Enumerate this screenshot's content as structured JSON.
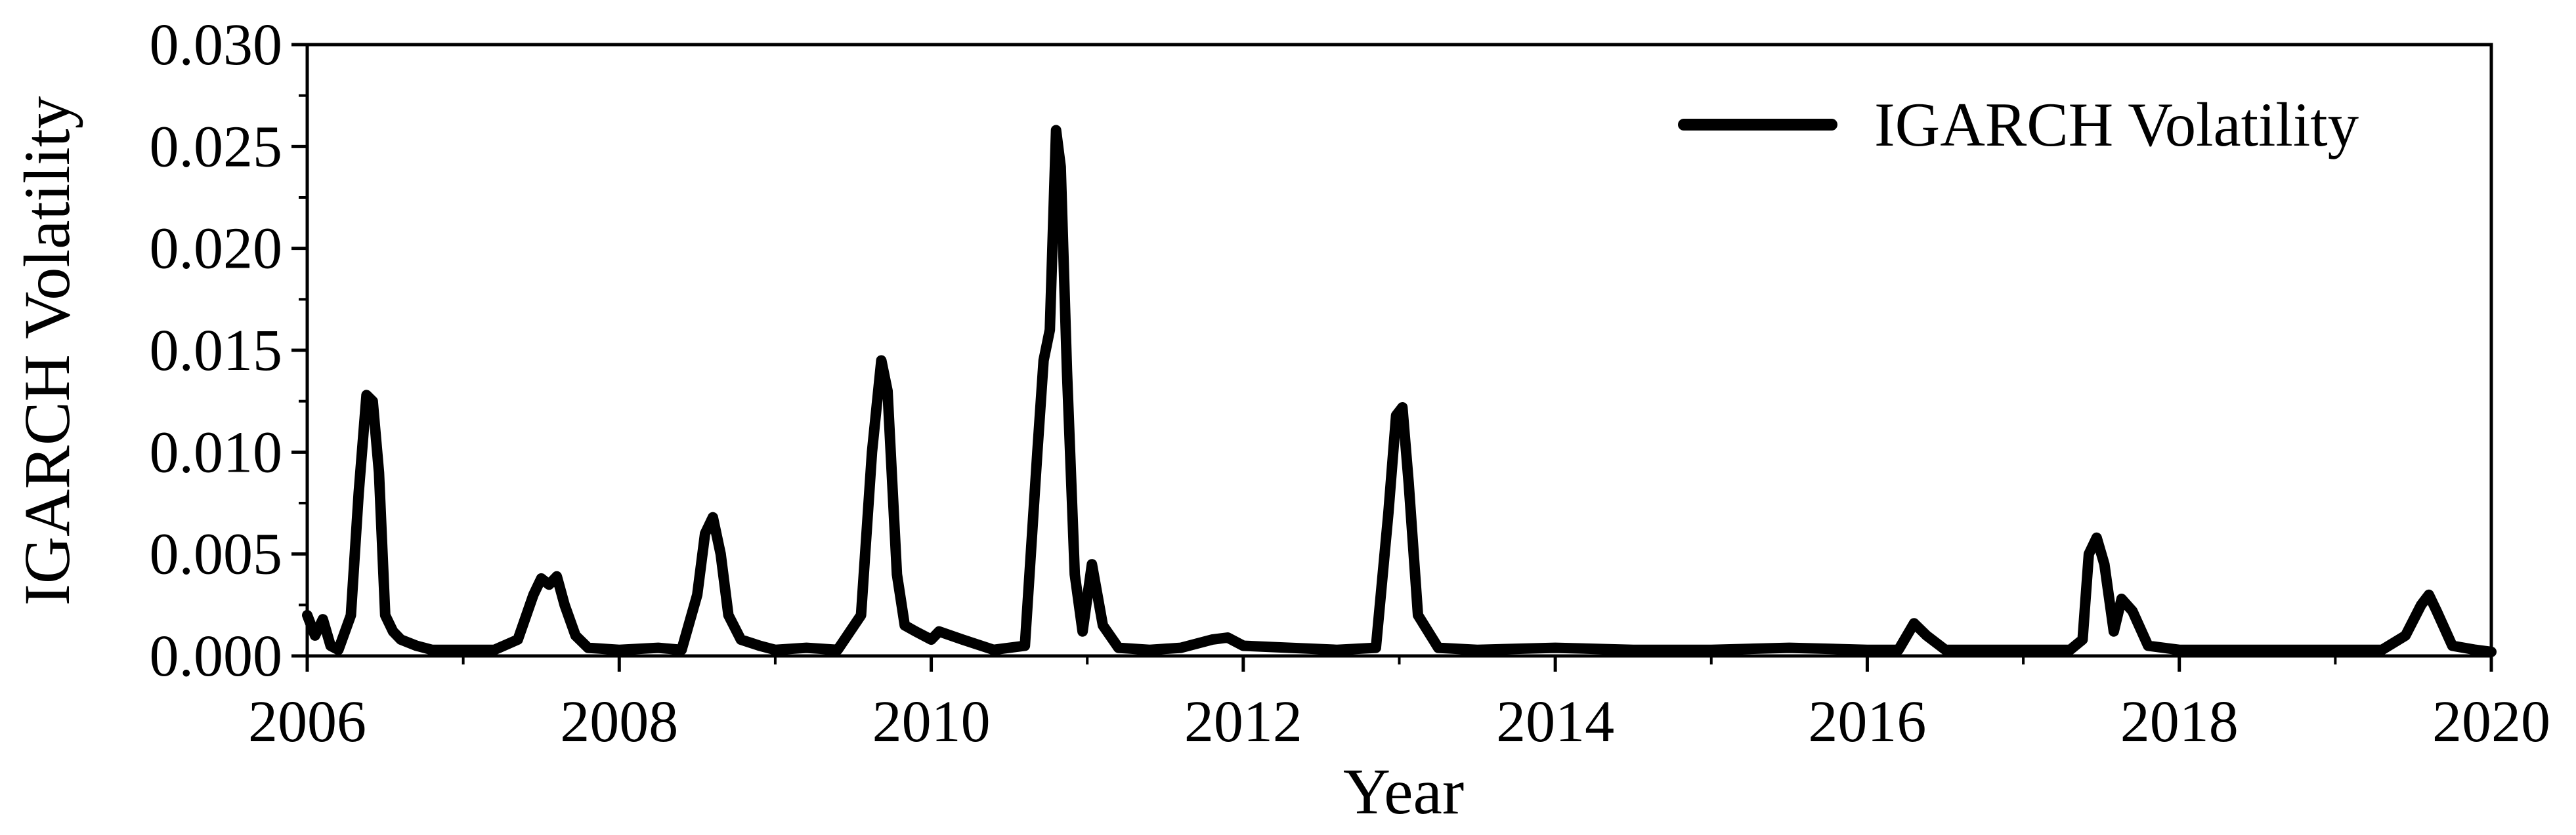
{
  "chart_data": {
    "type": "line",
    "xlabel": "Year",
    "ylabel": "IGARCH Volatility",
    "xlim": [
      2006,
      2020
    ],
    "ylim": [
      0,
      0.03
    ],
    "x_ticks": [
      "2006",
      "2008",
      "2010",
      "2012",
      "2014",
      "2016",
      "2018",
      "2020"
    ],
    "y_ticks": [
      "0.000",
      "0.005",
      "0.010",
      "0.015",
      "0.020",
      "0.025",
      "0.030"
    ],
    "legend_position": "top-right",
    "grid": false,
    "series": [
      {
        "name": "IGARCH Volatility",
        "color": "#000000",
        "x": [
          2006.0,
          2006.05,
          2006.1,
          2006.15,
          2006.2,
          2006.28,
          2006.33,
          2006.38,
          2006.42,
          2006.46,
          2006.5,
          2006.55,
          2006.6,
          2006.7,
          2006.8,
          2007.0,
          2007.2,
          2007.35,
          2007.45,
          2007.5,
          2007.55,
          2007.6,
          2007.65,
          2007.72,
          2007.8,
          2008.0,
          2008.25,
          2008.4,
          2008.5,
          2008.55,
          2008.6,
          2008.65,
          2008.7,
          2008.78,
          2008.9,
          2009.0,
          2009.2,
          2009.4,
          2009.55,
          2009.62,
          2009.68,
          2009.72,
          2009.78,
          2009.83,
          2009.9,
          2010.0,
          2010.05,
          2010.2,
          2010.4,
          2010.6,
          2010.68,
          2010.72,
          2010.76,
          2010.8,
          2010.83,
          2010.87,
          2010.92,
          2010.97,
          2011.03,
          2011.1,
          2011.2,
          2011.4,
          2011.6,
          2011.8,
          2011.9,
          2012.0,
          2012.3,
          2012.6,
          2012.85,
          2012.93,
          2012.98,
          2013.02,
          2013.06,
          2013.12,
          2013.25,
          2013.5,
          2014.0,
          2014.5,
          2015.0,
          2015.5,
          2016.0,
          2016.2,
          2016.3,
          2016.38,
          2016.5,
          2017.0,
          2017.3,
          2017.38,
          2017.42,
          2017.47,
          2017.52,
          2017.58,
          2017.63,
          2017.7,
          2017.8,
          2018.0,
          2018.5,
          2019.0,
          2019.3,
          2019.45,
          2019.55,
          2019.6,
          2019.65,
          2019.75,
          2019.9,
          2020.0
        ],
        "y": [
          0.002,
          0.001,
          0.0018,
          0.0005,
          0.0003,
          0.002,
          0.008,
          0.0128,
          0.0125,
          0.009,
          0.002,
          0.0012,
          0.0008,
          0.0005,
          0.0003,
          0.0003,
          0.0003,
          0.0008,
          0.003,
          0.0038,
          0.0035,
          0.0039,
          0.0025,
          0.001,
          0.0004,
          0.0003,
          0.0004,
          0.0003,
          0.003,
          0.006,
          0.0068,
          0.005,
          0.002,
          0.0008,
          0.0005,
          0.0003,
          0.0004,
          0.0003,
          0.002,
          0.01,
          0.0145,
          0.013,
          0.004,
          0.0015,
          0.0012,
          0.0008,
          0.0012,
          0.0008,
          0.0003,
          0.0005,
          0.01,
          0.0145,
          0.016,
          0.0258,
          0.024,
          0.014,
          0.004,
          0.0012,
          0.0045,
          0.0015,
          0.0004,
          0.0003,
          0.0004,
          0.0008,
          0.0009,
          0.0005,
          0.0004,
          0.0003,
          0.0004,
          0.007,
          0.0118,
          0.0122,
          0.0085,
          0.002,
          0.0004,
          0.0003,
          0.0004,
          0.0003,
          0.0003,
          0.0004,
          0.0003,
          0.0003,
          0.0016,
          0.001,
          0.0003,
          0.0003,
          0.0003,
          0.0008,
          0.005,
          0.0058,
          0.0045,
          0.0012,
          0.0028,
          0.0022,
          0.0005,
          0.0003,
          0.0003,
          0.0003,
          0.0003,
          0.001,
          0.0025,
          0.003,
          0.0022,
          0.0005,
          0.0003,
          0.0002
        ]
      }
    ]
  }
}
